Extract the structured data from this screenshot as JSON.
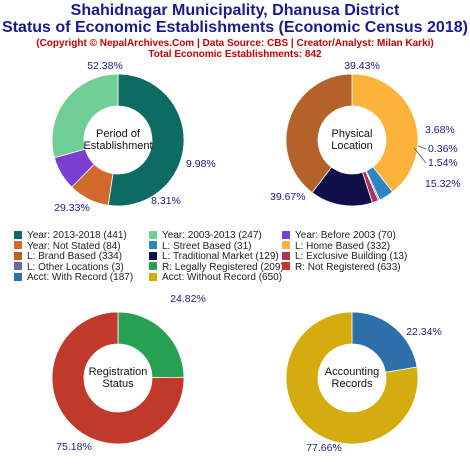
{
  "header": {
    "title1": "Shahidnagar Municipality, Dhanusa District",
    "title2": "Status of Economic Establishments (Economic Census 2018)",
    "copyright": "(Copyright © NepalArchives.Com | Data Source: CBS | Creator/Analyst: Milan Karki)",
    "total": "Total Economic Establishments: 842"
  },
  "chart_data": [
    {
      "type": "pie",
      "title": "Period of Establishment",
      "center_lines": [
        "Period of",
        "Establishment"
      ],
      "slices": [
        {
          "label": "Year: 2013-2018",
          "value": 441,
          "percent": "52.38%",
          "color": "#0d6b63"
        },
        {
          "label": "Year: Not Stated",
          "value": 84,
          "percent": "9.98%",
          "color": "#d2692d"
        },
        {
          "label": "Year: Before 2003",
          "value": 70,
          "percent": "8.31%",
          "color": "#7a3fd1"
        },
        {
          "label": "Year: 2003-2013",
          "value": 247,
          "percent": "29.33%",
          "color": "#6fcf97"
        }
      ]
    },
    {
      "type": "pie",
      "title": "Physical Location",
      "center_lines": [
        "Physical",
        "Location"
      ],
      "slices": [
        {
          "label": "L: Home Based",
          "value": 332,
          "percent": "39.43%",
          "color": "#fbb33b"
        },
        {
          "label": "L: Street Based",
          "value": 31,
          "percent": "3.68%",
          "color": "#2e86c1"
        },
        {
          "label": "L: Other Locations",
          "value": 3,
          "percent": "0.36%",
          "color": "#6a6aa0"
        },
        {
          "label": "L: Exclusive Building",
          "value": 13,
          "percent": "1.54%",
          "color": "#b03060"
        },
        {
          "label": "L: Traditional Market",
          "value": 129,
          "percent": "15.32%",
          "color": "#0f0f4a"
        },
        {
          "label": "L: Brand Based",
          "value": 334,
          "percent": "39.67%",
          "color": "#b5622a"
        }
      ]
    },
    {
      "type": "pie",
      "title": "Registration Status",
      "center_lines": [
        "Registration",
        "Status"
      ],
      "slices": [
        {
          "label": "R: Legally Registered",
          "value": 209,
          "percent": "24.82%",
          "color": "#27a051"
        },
        {
          "label": "R: Not Registered",
          "value": 633,
          "percent": "75.18%",
          "color": "#c0392b"
        }
      ]
    },
    {
      "type": "pie",
      "title": "Accounting Records",
      "center_lines": [
        "Accounting",
        "Records"
      ],
      "slices": [
        {
          "label": "Acct: With Record",
          "value": 187,
          "percent": "22.34%",
          "color": "#2d6fa8"
        },
        {
          "label": "Acct: Without Record",
          "value": 650,
          "percent": "77.66%",
          "color": "#d4ac0d"
        }
      ]
    }
  ],
  "legend": [
    {
      "text": "Year: 2013-2018 (441)",
      "color": "#0d6b63"
    },
    {
      "text": "Year: 2003-2013 (247)",
      "color": "#6fcf97"
    },
    {
      "text": "Year: Before 2003 (70)",
      "color": "#7a3fd1"
    },
    {
      "text": "Year: Not Stated (84)",
      "color": "#d2692d"
    },
    {
      "text": "L: Street Based (31)",
      "color": "#2e86c1"
    },
    {
      "text": "L: Home Based (332)",
      "color": "#fbb33b"
    },
    {
      "text": "L: Brand Based (334)",
      "color": "#b5622a"
    },
    {
      "text": "L: Traditional Market (129)",
      "color": "#0f0f4a"
    },
    {
      "text": "L: Exclusive Building (13)",
      "color": "#b03060"
    },
    {
      "text": "L: Other Locations (3)",
      "color": "#6a6aa0"
    },
    {
      "text": "R: Legally Registered (209)",
      "color": "#27a051"
    },
    {
      "text": "R: Not Registered (633)",
      "color": "#c0392b"
    },
    {
      "text": "Acct: With Record (187)",
      "color": "#2d6fa8"
    },
    {
      "text": "Acct: Without Record (650)",
      "color": "#d4ac0d"
    }
  ]
}
